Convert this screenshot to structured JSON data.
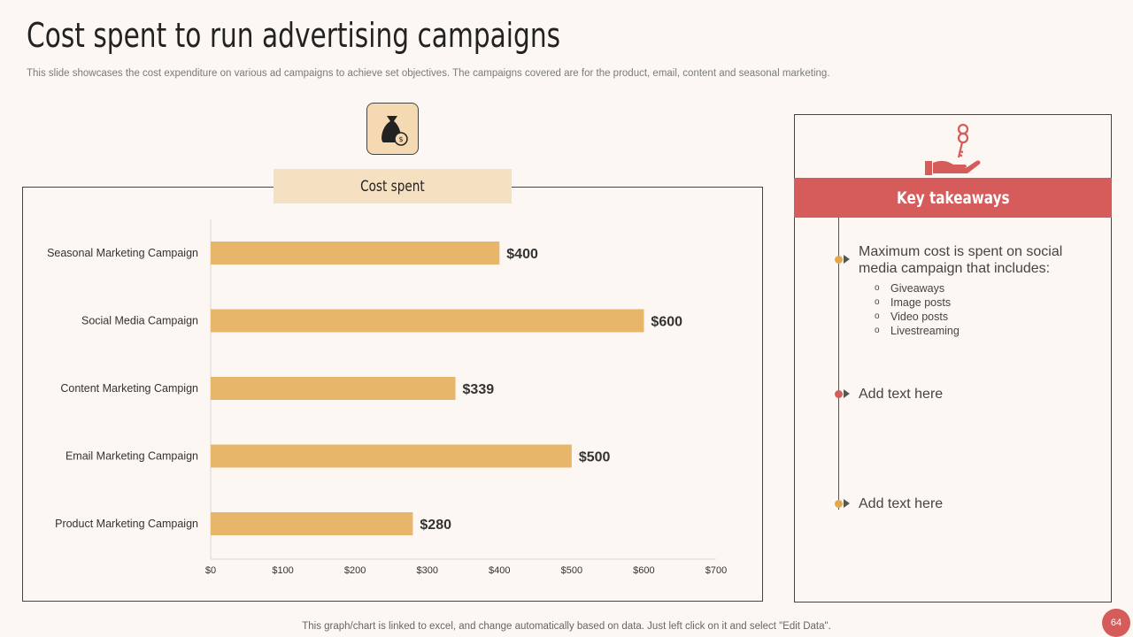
{
  "header": {
    "title": "Cost spent to run advertising campaigns",
    "subtitle": "This slide showcases the cost expenditure on various ad campaigns to achieve set objectives. The campaigns covered are for the product, email, content and seasonal marketing."
  },
  "chart_data": {
    "type": "bar",
    "orientation": "horizontal",
    "title": "Cost spent",
    "categories": [
      "Seasonal Marketing Campaign",
      "Social Media Campaign",
      "Content Marketing Campign",
      "Email Marketing Campaign",
      "Product Marketing Campaign"
    ],
    "values": [
      400,
      600,
      339,
      500,
      280
    ],
    "data_labels": [
      "$400",
      "$600",
      "$339",
      "$500",
      "$280"
    ],
    "xlim": [
      0,
      700
    ],
    "x_ticks": [
      "$0",
      "$100",
      "$200",
      "$300",
      "$400",
      "$500",
      "$600",
      "$700"
    ],
    "grid": false,
    "bar_color": "#e8b66a"
  },
  "side_panel": {
    "heading": "Key takeaways",
    "items": [
      {
        "text": "Maximum  cost is spent on social media campaign that includes:",
        "dot_color": "#e3a84a",
        "bullets": [
          "Giveaways",
          "Image posts",
          "Video posts",
          "Livestreaming"
        ]
      },
      {
        "text": "Add text here",
        "dot_color": "#d65b5b",
        "bullets": []
      },
      {
        "text": "Add text here",
        "dot_color": "#e3a84a",
        "bullets": []
      }
    ]
  },
  "footer": {
    "note": "This graph/chart is linked to excel,  and change automatically based on data. Just left click on it and select \"Edit Data\".",
    "page_number": "64"
  },
  "colors": {
    "accent": "#d65b5b",
    "tab": "#f6e0c2",
    "background": "#fcf7f2"
  },
  "icons": {
    "chart_icon": "money-bag-icon",
    "panel_icon": "hand-key-icon"
  }
}
